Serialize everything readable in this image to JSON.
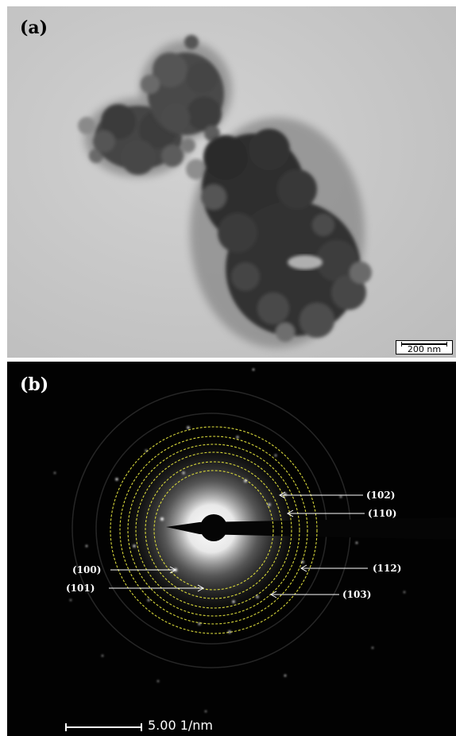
{
  "panels": {
    "a": {
      "label": "(a)",
      "scale_bar": "200 nm"
    },
    "b": {
      "label": "(b)",
      "scale_bar": "5.00 1/nm",
      "ring_labels": {
        "r102": "(102)",
        "r110": "(110)",
        "r100": "(100)",
        "r101": "(101)",
        "r112": "(112)",
        "r103": "(103)"
      }
    }
  },
  "colors": {
    "ring": "#d8d83a",
    "tem_background": "#c9c9c9",
    "diffraction_background": "#020202"
  }
}
